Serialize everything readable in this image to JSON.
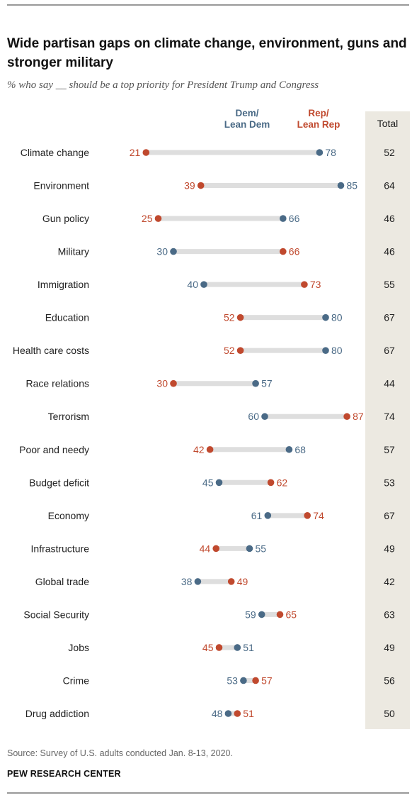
{
  "title": "Wide partisan gaps on climate change, environment, guns and stronger military",
  "subtitle": "% who say __ should be a top priority for President Trump and Congress",
  "legend": {
    "dem": "Dem/\nLean Dem",
    "rep": "Rep/\nLean Rep",
    "total": "Total"
  },
  "colors": {
    "dem": "#4a6a86",
    "rep": "#c0492e",
    "bar": "#dedede",
    "total_bg": "#ece9e1"
  },
  "source": "Source: Survey of U.S. adults conducted Jan. 8-13, 2020.",
  "org": "PEW RESEARCH CENTER",
  "chart_data": {
    "type": "dumbbell",
    "title": "Wide partisan gaps on climate change, environment, guns and stronger military",
    "series": [
      {
        "name": "Dem/Lean Dem",
        "color": "#4a6a86"
      },
      {
        "name": "Rep/Lean Rep",
        "color": "#c0492e"
      },
      {
        "name": "Total"
      }
    ],
    "rows": [
      {
        "label": "Climate change",
        "dem": 78,
        "rep": 21,
        "total": 52
      },
      {
        "label": "Environment",
        "dem": 85,
        "rep": 39,
        "total": 64
      },
      {
        "label": "Gun policy",
        "dem": 66,
        "rep": 25,
        "total": 46
      },
      {
        "label": "Military",
        "dem": 30,
        "rep": 66,
        "total": 46
      },
      {
        "label": "Immigration",
        "dem": 40,
        "rep": 73,
        "total": 55
      },
      {
        "label": "Education",
        "dem": 80,
        "rep": 52,
        "total": 67
      },
      {
        "label": "Health care costs",
        "dem": 80,
        "rep": 52,
        "total": 67
      },
      {
        "label": "Race relations",
        "dem": 57,
        "rep": 30,
        "total": 44
      },
      {
        "label": "Terrorism",
        "dem": 60,
        "rep": 87,
        "total": 74
      },
      {
        "label": "Poor and needy",
        "dem": 68,
        "rep": 42,
        "total": 57
      },
      {
        "label": "Budget deficit",
        "dem": 45,
        "rep": 62,
        "total": 53
      },
      {
        "label": "Economy",
        "dem": 61,
        "rep": 74,
        "total": 67
      },
      {
        "label": "Infrastructure",
        "dem": 55,
        "rep": 44,
        "total": 49
      },
      {
        "label": "Global trade",
        "dem": 38,
        "rep": 49,
        "total": 42
      },
      {
        "label": "Social Security",
        "dem": 59,
        "rep": 65,
        "total": 63
      },
      {
        "label": "Jobs",
        "dem": 51,
        "rep": 45,
        "total": 49
      },
      {
        "label": "Crime",
        "dem": 53,
        "rep": 57,
        "total": 56
      },
      {
        "label": "Drug addiction",
        "dem": 48,
        "rep": 51,
        "total": 50
      }
    ]
  }
}
